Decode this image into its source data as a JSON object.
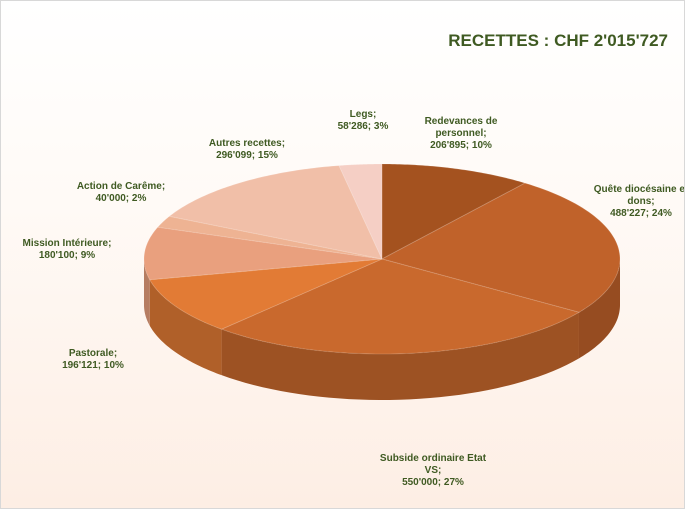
{
  "chart_data": {
    "type": "pie",
    "title": "RECETTES : CHF 2'015'727",
    "categories": [
      "Redevances de personnel;",
      "Quête diocésaine et dons;",
      "Subside ordinaire Etat VS;",
      "Pastorale;",
      "Mission Intérieure;",
      "Action de Carême;",
      "Autres recettes;",
      "Legs;"
    ],
    "values": [
      206895,
      488227,
      550000,
      196121,
      180100,
      40000,
      296099,
      58286
    ],
    "value_labels": [
      "206'895; 10%",
      "488'227; 24%",
      "550'000; 27%",
      "196'121; 10%",
      "180'100; 9%",
      "40'000; 2%",
      "296'099; 15%",
      "58'286; 3%"
    ],
    "colors": [
      "#a4521f",
      "#c0622a",
      "#c9692d",
      "#e27b35",
      "#e9a07e",
      "#eeb393",
      "#f1bfa8",
      "#f5cfc5"
    ]
  }
}
